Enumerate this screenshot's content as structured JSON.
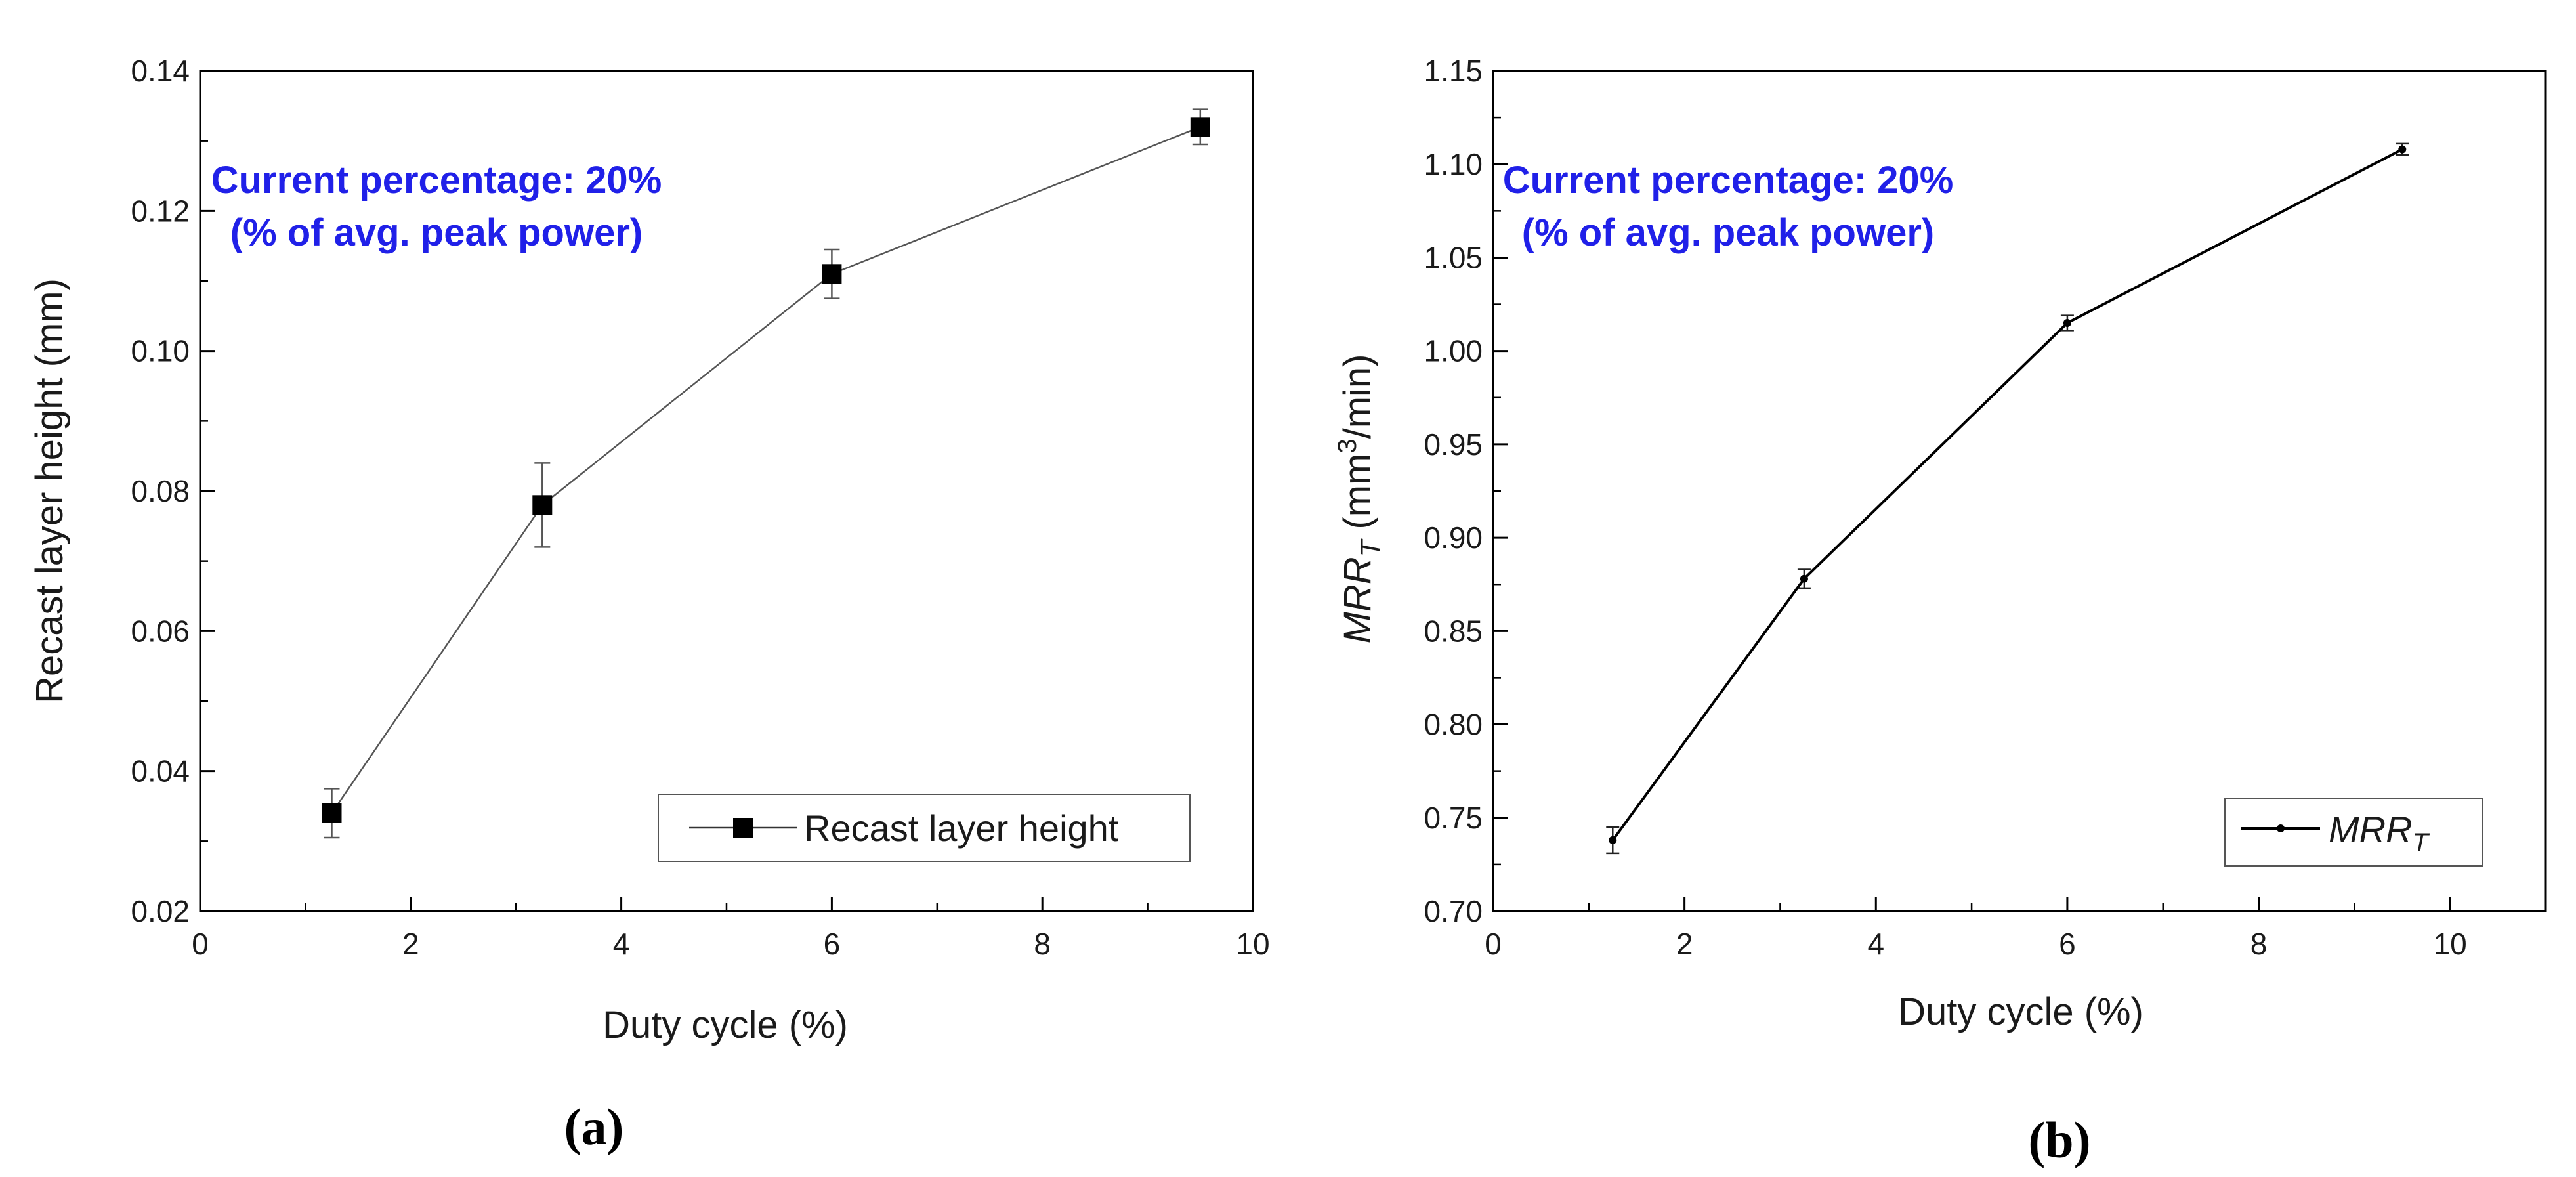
{
  "chart_data": [
    {
      "type": "line",
      "panel_label": "(a)",
      "xlabel": "Duty cycle (%)",
      "ylabel": "Recast layer height (mm)",
      "xlim": [
        0,
        10
      ],
      "ylim": [
        0.02,
        0.14
      ],
      "x_ticks": [
        "0",
        "2",
        "4",
        "6",
        "8",
        "10"
      ],
      "y_ticks": [
        "0.02",
        "0.04",
        "0.06",
        "0.08",
        "0.10",
        "0.12",
        "0.14"
      ],
      "annotation": [
        "Current percentage: 20%",
        "(% of avg. peak power)"
      ],
      "legend_location": "bottom-right",
      "series": [
        {
          "name": "Recast layer height",
          "marker": "square",
          "x": [
            1.25,
            3.25,
            6.0,
            9.5
          ],
          "y": [
            0.034,
            0.078,
            0.111,
            0.132
          ],
          "error": [
            0.0035,
            0.006,
            0.0035,
            0.0025
          ]
        }
      ]
    },
    {
      "type": "line",
      "panel_label": "(b)",
      "xlabel": "Duty cycle (%)",
      "ylabel_main": "MRR",
      "ylabel_sub": "T",
      "ylabel_unit_pre": " (mm",
      "ylabel_unit_sup": "3",
      "ylabel_unit_post": "/min)",
      "xlim": [
        0,
        11
      ],
      "ylim": [
        0.7,
        1.15
      ],
      "x_ticks": [
        "0",
        "2",
        "4",
        "6",
        "8",
        "10"
      ],
      "y_ticks": [
        "0.70",
        "0.75",
        "0.80",
        "0.85",
        "0.90",
        "0.95",
        "1.00",
        "1.05",
        "1.10",
        "1.15"
      ],
      "annotation": [
        "Current percentage: 20%",
        "(% of avg. peak power)"
      ],
      "legend_location": "bottom-right",
      "series": [
        {
          "name": "MRR",
          "name_sub": "T",
          "marker": "dot",
          "x": [
            1.25,
            3.25,
            6.0,
            9.5
          ],
          "y": [
            0.738,
            0.878,
            1.015,
            1.108
          ],
          "error": [
            0.007,
            0.005,
            0.004,
            0.003
          ]
        }
      ]
    }
  ]
}
